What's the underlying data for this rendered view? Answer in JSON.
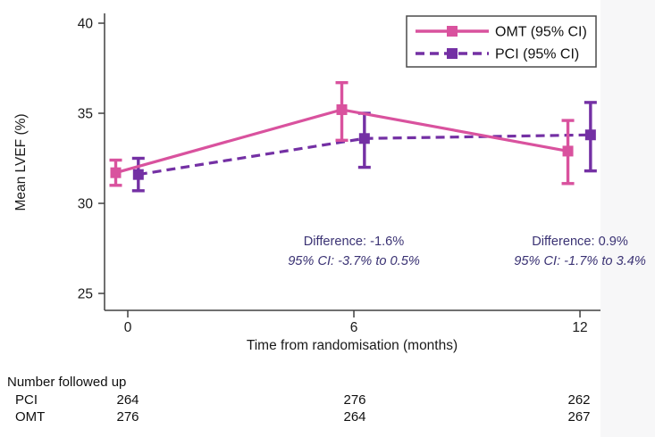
{
  "figure": {
    "background": "#ffffff",
    "right_band_color": "#f7f7f8",
    "axis_color": "#404040",
    "text_color": "#1a1a1a"
  },
  "chart_data": {
    "type": "line",
    "title": "",
    "xlabel": "Time from randomisation (months)",
    "ylabel": "Mean LVEF (%)",
    "x_ticks": [
      0,
      6,
      12
    ],
    "y_ticks": [
      25,
      30,
      35,
      40
    ],
    "ylim": [
      24,
      40.5
    ],
    "xlim": [
      -0.62,
      12.55
    ],
    "grid": false,
    "legend_position": "top-right",
    "series": [
      {
        "name": "PCI (95% CI)",
        "color": "#7430a4",
        "style": "dashed",
        "marker": "square",
        "x": [
          0,
          6,
          12
        ],
        "x_offset": 0.28,
        "values": [
          31.6,
          33.6,
          33.8
        ],
        "ci_low": [
          30.7,
          32.0,
          31.8
        ],
        "ci_high": [
          32.5,
          35.0,
          35.6
        ]
      },
      {
        "name": "OMT (95% CI)",
        "color": "#d9529e",
        "style": "solid",
        "marker": "square",
        "x": [
          0,
          6,
          12
        ],
        "x_offset": -0.32,
        "values": [
          31.7,
          35.2,
          32.9
        ],
        "ci_low": [
          31.0,
          33.5,
          31.1
        ],
        "ci_high": [
          32.4,
          36.7,
          34.6
        ]
      }
    ],
    "annotations": [
      {
        "x": 6,
        "line1": "Difference: -1.6%",
        "line2": "95% CI: -3.7% to 0.5%",
        "color": "#3b3374"
      },
      {
        "x": 12,
        "line1": "Difference: 0.9%",
        "line2": "95% CI: -1.7% to 3.4%",
        "color": "#3b3374"
      }
    ]
  },
  "followup_table": {
    "title": "Number followed up",
    "rows": [
      {
        "label": "PCI",
        "values": [
          "264",
          "276",
          "262"
        ]
      },
      {
        "label": "OMT",
        "values": [
          "276",
          "264",
          "267"
        ]
      }
    ]
  }
}
